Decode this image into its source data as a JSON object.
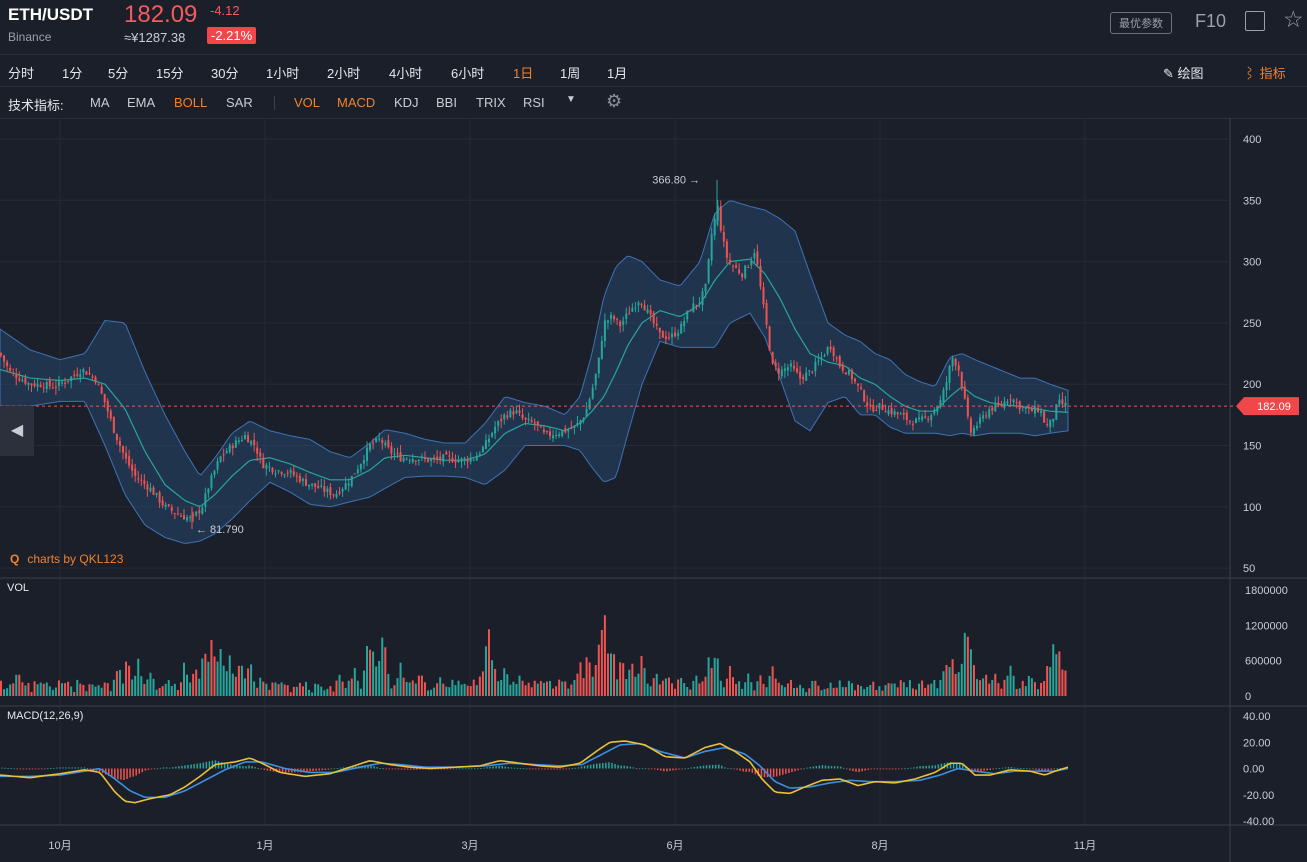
{
  "header": {
    "pair": "ETH/USDT",
    "exchange": "Binance",
    "price": "182.09",
    "change": "-4.12",
    "cny": "≈¥1287.38",
    "change_pct": "-2.21%",
    "optimize_btn": "最优参数",
    "f10": "F10",
    "expand_icon": "expand-icon",
    "star_icon": "star-icon"
  },
  "timeframes": [
    "分时",
    "1分",
    "5分",
    "15分",
    "30分",
    "1小时",
    "2小时",
    "4小时",
    "6小时",
    "1日",
    "1周",
    "1月"
  ],
  "active_timeframe": "1日",
  "tools": {
    "draw": "绘图",
    "indicators": "指标"
  },
  "indicator_bar": {
    "label": "技术指标:",
    "main": [
      "MA",
      "EMA",
      "BOLL",
      "SAR"
    ],
    "sub": [
      "VOL",
      "MACD",
      "KDJ",
      "BBI",
      "TRIX",
      "RSI"
    ],
    "active": [
      "BOLL",
      "VOL",
      "MACD"
    ]
  },
  "watermark": "charts by QKL123",
  "colors": {
    "up": "#26a69a",
    "down": "#ef5350",
    "accent": "#f0822d",
    "bg": "#1b1f2a",
    "boll": "#3d73b3",
    "macd_dif": "#e8c03a",
    "macd_dea": "#3d8fe0"
  },
  "chart_data": {
    "type": "candlestick",
    "title": "",
    "x_axis_labels": [
      "10月",
      "1月",
      "3月",
      "6月",
      "8月",
      "11月"
    ],
    "price_axis": {
      "ticks": [
        400,
        350,
        300,
        250,
        200,
        150,
        100,
        50
      ],
      "ylim": [
        50,
        405
      ]
    },
    "current_price": 182.09,
    "max_marker": {
      "label": "366.80",
      "value": 366.8
    },
    "min_marker": {
      "label": "81.790",
      "value": 81.79
    },
    "close_path": [
      [
        0,
        225
      ],
      [
        10,
        210
      ],
      [
        20,
        205
      ],
      [
        30,
        200
      ],
      [
        40,
        200
      ],
      [
        55,
        198
      ],
      [
        70,
        205
      ],
      [
        82,
        212
      ],
      [
        95,
        205
      ],
      [
        105,
        185
      ],
      [
        115,
        160
      ],
      [
        125,
        140
      ],
      [
        135,
        125
      ],
      [
        150,
        115
      ],
      [
        165,
        100
      ],
      [
        180,
        93
      ],
      [
        192,
        90
      ],
      [
        202,
        100
      ],
      [
        210,
        120
      ],
      [
        220,
        140
      ],
      [
        232,
        150
      ],
      [
        245,
        158
      ],
      [
        255,
        150
      ],
      [
        262,
        135
      ],
      [
        275,
        130
      ],
      [
        290,
        128
      ],
      [
        305,
        120
      ],
      [
        320,
        115
      ],
      [
        335,
        110
      ],
      [
        350,
        122
      ],
      [
        360,
        135
      ],
      [
        370,
        150
      ],
      [
        380,
        155
      ],
      [
        390,
        145
      ],
      [
        400,
        140
      ],
      [
        415,
        140
      ],
      [
        430,
        138
      ],
      [
        445,
        140
      ],
      [
        460,
        138
      ],
      [
        475,
        140
      ],
      [
        485,
        150
      ],
      [
        495,
        165
      ],
      [
        505,
        175
      ],
      [
        515,
        178
      ],
      [
        525,
        170
      ],
      [
        535,
        168
      ],
      [
        545,
        158
      ],
      [
        555,
        160
      ],
      [
        565,
        162
      ],
      [
        575,
        165
      ],
      [
        585,
        175
      ],
      [
        592,
        195
      ],
      [
        598,
        215
      ],
      [
        604,
        250
      ],
      [
        612,
        255
      ],
      [
        620,
        248
      ],
      [
        630,
        260
      ],
      [
        640,
        270
      ],
      [
        650,
        255
      ],
      [
        660,
        240
      ],
      [
        670,
        238
      ],
      [
        680,
        245
      ],
      [
        690,
        262
      ],
      [
        700,
        268
      ],
      [
        706,
        280
      ],
      [
        712,
        325
      ],
      [
        718,
        345
      ],
      [
        722,
        320
      ],
      [
        728,
        300
      ],
      [
        735,
        295
      ],
      [
        742,
        290
      ],
      [
        750,
        300
      ],
      [
        755,
        310
      ],
      [
        762,
        270
      ],
      [
        768,
        240
      ],
      [
        772,
        215
      ],
      [
        780,
        210
      ],
      [
        790,
        215
      ],
      [
        800,
        205
      ],
      [
        810,
        210
      ],
      [
        820,
        220
      ],
      [
        830,
        232
      ],
      [
        840,
        215
      ],
      [
        850,
        208
      ],
      [
        860,
        195
      ],
      [
        870,
        180
      ],
      [
        880,
        182
      ],
      [
        890,
        178
      ],
      [
        900,
        175
      ],
      [
        910,
        170
      ],
      [
        920,
        170
      ],
      [
        930,
        175
      ],
      [
        940,
        185
      ],
      [
        946,
        200
      ],
      [
        952,
        222
      ],
      [
        958,
        215
      ],
      [
        964,
        190
      ],
      [
        970,
        160
      ],
      [
        980,
        170
      ],
      [
        990,
        180
      ],
      [
        1000,
        182
      ],
      [
        1010,
        190
      ],
      [
        1020,
        182
      ],
      [
        1030,
        178
      ],
      [
        1040,
        180
      ],
      [
        1046,
        165
      ],
      [
        1052,
        170
      ],
      [
        1058,
        185
      ],
      [
        1068,
        182.09
      ]
    ],
    "boll_path": [
      [
        0,
        212,
        245,
        182
      ],
      [
        30,
        205,
        228,
        182
      ],
      [
        60,
        203,
        220,
        186
      ],
      [
        85,
        205,
        225,
        186
      ],
      [
        105,
        200,
        252,
        150
      ],
      [
        125,
        180,
        250,
        110
      ],
      [
        145,
        145,
        210,
        85
      ],
      [
        165,
        118,
        175,
        75
      ],
      [
        185,
        105,
        145,
        70
      ],
      [
        200,
        100,
        125,
        72
      ],
      [
        215,
        110,
        140,
        78
      ],
      [
        232,
        125,
        160,
        90
      ],
      [
        250,
        138,
        170,
        105
      ],
      [
        270,
        140,
        162,
        120
      ],
      [
        290,
        135,
        158,
        112
      ],
      [
        310,
        128,
        155,
        102
      ],
      [
        330,
        122,
        145,
        100
      ],
      [
        350,
        122,
        140,
        104
      ],
      [
        370,
        130,
        152,
        108
      ],
      [
        385,
        140,
        163,
        115
      ],
      [
        405,
        142,
        160,
        124
      ],
      [
        425,
        140,
        155,
        125
      ],
      [
        445,
        138,
        152,
        125
      ],
      [
        465,
        138,
        152,
        124
      ],
      [
        485,
        143,
        168,
        118
      ],
      [
        505,
        160,
        190,
        130
      ],
      [
        525,
        168,
        185,
        150
      ],
      [
        545,
        166,
        182,
        150
      ],
      [
        565,
        162,
        175,
        150
      ],
      [
        580,
        168,
        190,
        146
      ],
      [
        592,
        178,
        225,
        132
      ],
      [
        604,
        190,
        272,
        120
      ],
      [
        616,
        210,
        296,
        124
      ],
      [
        628,
        232,
        305,
        160
      ],
      [
        642,
        250,
        300,
        200
      ],
      [
        660,
        260,
        285,
        235
      ],
      [
        680,
        255,
        280,
        230
      ],
      [
        700,
        265,
        300,
        230
      ],
      [
        715,
        285,
        340,
        230
      ],
      [
        730,
        300,
        350,
        250
      ],
      [
        750,
        302,
        345,
        258
      ],
      [
        765,
        290,
        342,
        238
      ],
      [
        780,
        270,
        335,
        205
      ],
      [
        795,
        245,
        325,
        170
      ],
      [
        810,
        225,
        290,
        162
      ],
      [
        828,
        218,
        250,
        185
      ],
      [
        845,
        215,
        240,
        190
      ],
      [
        860,
        205,
        235,
        175
      ],
      [
        875,
        200,
        225,
        175
      ],
      [
        890,
        190,
        220,
        165
      ],
      [
        905,
        182,
        208,
        160
      ],
      [
        920,
        178,
        202,
        160
      ],
      [
        935,
        178,
        198,
        160
      ],
      [
        950,
        190,
        222,
        158
      ],
      [
        962,
        198,
        225,
        160
      ],
      [
        975,
        190,
        220,
        158
      ],
      [
        990,
        185,
        215,
        160
      ],
      [
        1005,
        183,
        210,
        160
      ],
      [
        1020,
        182,
        205,
        160
      ],
      [
        1035,
        180,
        205,
        158
      ],
      [
        1050,
        178,
        200,
        160
      ],
      [
        1068,
        177,
        195,
        162
      ]
    ],
    "volume_axis": {
      "ticks": [
        1800000,
        1200000,
        600000,
        0
      ],
      "ylim": [
        0,
        1800000
      ]
    },
    "volume_spikes": [
      [
        2,
        200000
      ],
      [
        18,
        520000
      ],
      [
        60,
        300000
      ],
      [
        105,
        260000
      ],
      [
        118,
        560000
      ],
      [
        128,
        750000
      ],
      [
        138,
        660000
      ],
      [
        150,
        520000
      ],
      [
        168,
        370000
      ],
      [
        185,
        620000
      ],
      [
        196,
        600000
      ],
      [
        204,
        830000
      ],
      [
        212,
        1250000
      ],
      [
        220,
        980000
      ],
      [
        230,
        760000
      ],
      [
        240,
        780000
      ],
      [
        250,
        600000
      ],
      [
        262,
        380000
      ],
      [
        280,
        260000
      ],
      [
        300,
        250000
      ],
      [
        320,
        220000
      ],
      [
        340,
        460000
      ],
      [
        355,
        520000
      ],
      [
        367,
        820000
      ],
      [
        372,
        1050000
      ],
      [
        383,
        1140000
      ],
      [
        400,
        580000
      ],
      [
        420,
        500000
      ],
      [
        440,
        400000
      ],
      [
        460,
        320000
      ],
      [
        480,
        360000
      ],
      [
        488,
        1280000
      ],
      [
        492,
        760000
      ],
      [
        505,
        560000
      ],
      [
        520,
        400000
      ],
      [
        540,
        300000
      ],
      [
        560,
        340000
      ],
      [
        575,
        380000
      ],
      [
        580,
        650000
      ],
      [
        588,
        820000
      ],
      [
        598,
        940000
      ],
      [
        604,
        1620000
      ],
      [
        612,
        980000
      ],
      [
        622,
        720000
      ],
      [
        632,
        680000
      ],
      [
        642,
        860000
      ],
      [
        656,
        500000
      ],
      [
        668,
        440000
      ],
      [
        680,
        380000
      ],
      [
        696,
        460000
      ],
      [
        710,
        760000
      ],
      [
        716,
        840000
      ],
      [
        730,
        500000
      ],
      [
        748,
        420000
      ],
      [
        760,
        360000
      ],
      [
        772,
        560000
      ],
      [
        790,
        300000
      ],
      [
        812,
        260000
      ],
      [
        830,
        250000
      ],
      [
        850,
        300000
      ],
      [
        870,
        250000
      ],
      [
        890,
        300000
      ],
      [
        910,
        250000
      ],
      [
        930,
        320000
      ],
      [
        945,
        650000
      ],
      [
        952,
        700000
      ],
      [
        960,
        540000
      ],
      [
        966,
        1420000
      ],
      [
        972,
        880000
      ],
      [
        985,
        520000
      ],
      [
        995,
        480000
      ],
      [
        1010,
        600000
      ],
      [
        1030,
        420000
      ],
      [
        1048,
        600000
      ],
      [
        1054,
        1150000
      ],
      [
        1060,
        820000
      ],
      [
        1066,
        500000
      ]
    ],
    "macd_axis": {
      "ticks": [
        40,
        20,
        0,
        -20,
        -40
      ],
      "ylim": [
        -40,
        40
      ]
    },
    "macd_dif": [
      [
        0,
        -5
      ],
      [
        30,
        -7
      ],
      [
        60,
        -4
      ],
      [
        85,
        -1
      ],
      [
        100,
        -3
      ],
      [
        115,
        -18
      ],
      [
        125,
        -25
      ],
      [
        135,
        -26
      ],
      [
        150,
        -23
      ],
      [
        170,
        -20
      ],
      [
        185,
        -14
      ],
      [
        200,
        -6
      ],
      [
        215,
        3
      ],
      [
        235,
        5
      ],
      [
        250,
        8
      ],
      [
        262,
        4
      ],
      [
        280,
        -3
      ],
      [
        305,
        -6
      ],
      [
        330,
        -4
      ],
      [
        350,
        1
      ],
      [
        370,
        6
      ],
      [
        390,
        3
      ],
      [
        410,
        1
      ],
      [
        430,
        0
      ],
      [
        455,
        1
      ],
      [
        480,
        2
      ],
      [
        500,
        6
      ],
      [
        520,
        4
      ],
      [
        540,
        2
      ],
      [
        560,
        1
      ],
      [
        580,
        4
      ],
      [
        598,
        14
      ],
      [
        610,
        20
      ],
      [
        625,
        21
      ],
      [
        645,
        18
      ],
      [
        665,
        9
      ],
      [
        685,
        8
      ],
      [
        705,
        16
      ],
      [
        720,
        19
      ],
      [
        735,
        13
      ],
      [
        750,
        5
      ],
      [
        762,
        -8
      ],
      [
        775,
        -18
      ],
      [
        790,
        -19
      ],
      [
        805,
        -14
      ],
      [
        822,
        -9
      ],
      [
        840,
        -8
      ],
      [
        858,
        -13
      ],
      [
        875,
        -10
      ],
      [
        895,
        -11
      ],
      [
        915,
        -8
      ],
      [
        935,
        -3
      ],
      [
        950,
        4
      ],
      [
        962,
        4
      ],
      [
        975,
        -5
      ],
      [
        990,
        -5
      ],
      [
        1010,
        -1
      ],
      [
        1030,
        -2
      ],
      [
        1045,
        -5
      ],
      [
        1055,
        -2
      ],
      [
        1068,
        1
      ]
    ],
    "macd_dea": [
      [
        0,
        -6
      ],
      [
        30,
        -6
      ],
      [
        60,
        -5
      ],
      [
        85,
        -2
      ],
      [
        100,
        0
      ],
      [
        115,
        -8
      ],
      [
        130,
        -17
      ],
      [
        145,
        -22
      ],
      [
        165,
        -22
      ],
      [
        185,
        -17
      ],
      [
        205,
        -9
      ],
      [
        225,
        -1
      ],
      [
        245,
        5
      ],
      [
        262,
        5
      ],
      [
        285,
        0
      ],
      [
        310,
        -3
      ],
      [
        335,
        -3
      ],
      [
        360,
        1
      ],
      [
        380,
        4
      ],
      [
        400,
        3
      ],
      [
        425,
        1
      ],
      [
        455,
        1
      ],
      [
        485,
        2
      ],
      [
        510,
        4
      ],
      [
        535,
        3
      ],
      [
        560,
        2
      ],
      [
        582,
        3
      ],
      [
        600,
        10
      ],
      [
        620,
        18
      ],
      [
        640,
        19
      ],
      [
        660,
        13
      ],
      [
        685,
        8
      ],
      [
        705,
        13
      ],
      [
        725,
        16
      ],
      [
        745,
        11
      ],
      [
        760,
        2
      ],
      [
        775,
        -10
      ],
      [
        790,
        -15
      ],
      [
        810,
        -14
      ],
      [
        830,
        -11
      ],
      [
        850,
        -9
      ],
      [
        870,
        -10
      ],
      [
        895,
        -10
      ],
      [
        920,
        -9
      ],
      [
        940,
        -5
      ],
      [
        958,
        0
      ],
      [
        975,
        -2
      ],
      [
        995,
        -4
      ],
      [
        1015,
        -2
      ],
      [
        1035,
        -2
      ],
      [
        1055,
        -2
      ],
      [
        1068,
        0
      ]
    ]
  }
}
